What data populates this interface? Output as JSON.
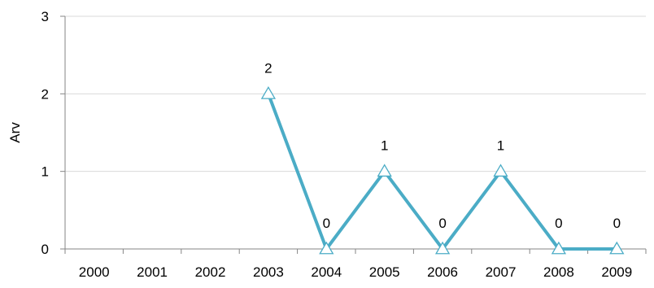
{
  "chart_data": {
    "type": "line",
    "categories": [
      "2000",
      "2001",
      "2002",
      "2003",
      "2004",
      "2005",
      "2006",
      "2007",
      "2008",
      "2009"
    ],
    "series": [
      {
        "values": [
          null,
          null,
          null,
          2,
          0,
          1,
          0,
          1,
          0,
          0
        ],
        "color": "#4BACC6",
        "marker": "triangle-open"
      }
    ],
    "data_labels": [
      "",
      "",
      "",
      "2",
      "0",
      "1",
      "0",
      "1",
      "0",
      "0"
    ],
    "title": "",
    "xlabel": "",
    "ylabel": "Arv",
    "ylim": [
      0,
      3
    ],
    "yticks": [
      "0",
      "1",
      "2",
      "3"
    ],
    "grid": true,
    "legend": "none"
  }
}
